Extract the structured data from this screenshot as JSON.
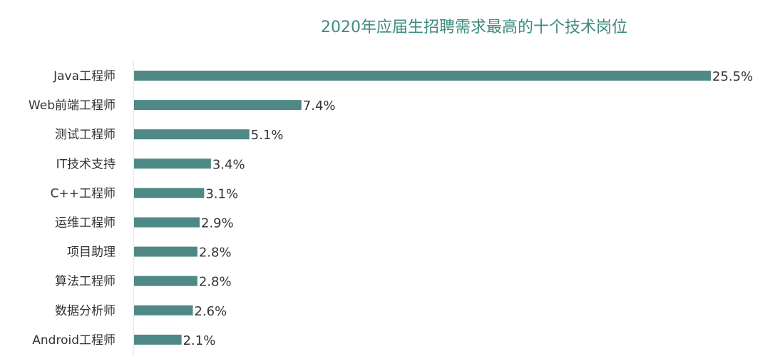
{
  "chart_data": {
    "type": "bar",
    "orientation": "horizontal",
    "title": "2020年应届生招聘需求最高的十个技术岗位",
    "categories": [
      "Java工程师",
      "Web前端工程师",
      "测试工程师",
      "IT技术支持",
      "C++工程师",
      "运维工程师",
      "项目助理",
      "算法工程师",
      "数据分析师",
      "Android工程师"
    ],
    "values": [
      25.5,
      7.4,
      5.1,
      3.4,
      3.1,
      2.9,
      2.8,
      2.8,
      2.6,
      2.1
    ],
    "data_labels": [
      "25.5%",
      "7.4%",
      "5.1%",
      "3.4%",
      "3.1%",
      "2.9%",
      "2.8%",
      "2.8%",
      "2.6%",
      "2.1%"
    ],
    "unit": "%",
    "grid": false,
    "colors": {
      "bar": "#4f8985",
      "title": "#3f8a80",
      "axis": "#dddddd",
      "text": "#333333"
    }
  }
}
